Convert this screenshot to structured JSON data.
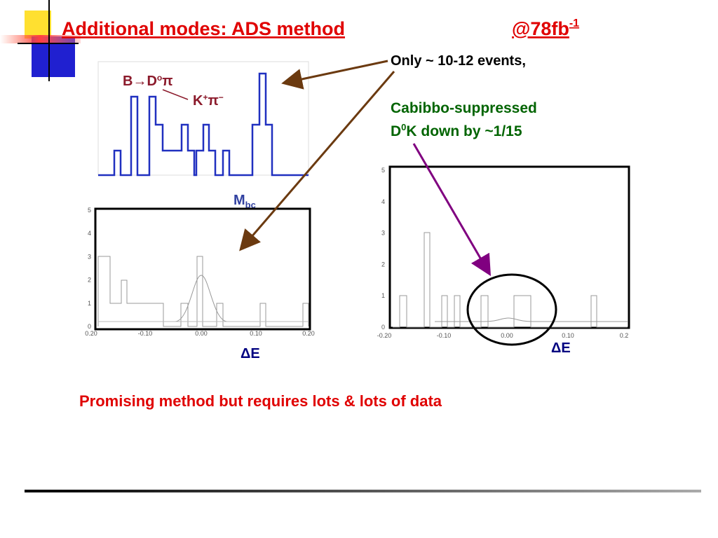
{
  "header": {
    "title": "Additional modes: ADS method",
    "lumi": "@78fb",
    "lumi_exp": "-1"
  },
  "annotations": {
    "events": "Only ~ 10-12 events,",
    "cabibbo_line1": "Cabibbo-suppressed",
    "cabibbo_d": "D",
    "cabibbo_sup": "0",
    "cabibbo_rest": "K down by ~1/15"
  },
  "plots": [
    {
      "decay": "B→D",
      "decay_sup": "o",
      "decay_pi": "π",
      "kaon": "K",
      "kaon_sup": "+",
      "pion": "π",
      "pion_sup": "−",
      "xlabel": "M",
      "xlabel_sub": "bc"
    },
    {
      "yticks": [
        "0",
        "1",
        "2",
        "3",
        "4",
        "5"
      ],
      "xticks": [
        "0.20",
        "-0.10",
        "0.00",
        "0.10",
        "0.20"
      ],
      "xlabel": "ΔE"
    },
    {
      "yticks": [
        "0",
        "1",
        "2",
        "3",
        "4",
        "5"
      ],
      "xticks": [
        "-0.20",
        "-0.10",
        "0.00",
        "0.10",
        "0.2"
      ],
      "xlabel": "ΔE"
    }
  ],
  "footer": "Promising method but requires lots & lots of data"
}
